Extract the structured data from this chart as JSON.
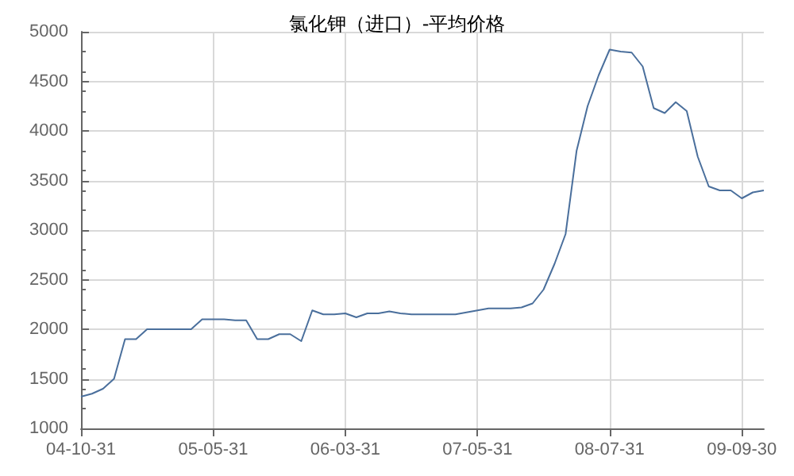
{
  "chart_data": {
    "type": "line",
    "title": "氯化钾（进口）-平均价格",
    "categories": [
      "04-10-31",
      null,
      null,
      null,
      null,
      null,
      null,
      null,
      null,
      null,
      null,
      null,
      "05-05-31",
      null,
      null,
      null,
      null,
      null,
      null,
      null,
      null,
      null,
      null,
      null,
      "06-03-31",
      null,
      null,
      null,
      null,
      null,
      null,
      null,
      null,
      null,
      null,
      null,
      "07-05-31",
      null,
      null,
      null,
      null,
      null,
      null,
      null,
      null,
      null,
      null,
      null,
      "08-07-31",
      null,
      null,
      null,
      null,
      null,
      null,
      null,
      null,
      null,
      null,
      null,
      "09-09-30",
      null,
      null
    ],
    "series": [
      {
        "color": "#4a6f9c",
        "values": [
          1320,
          1350,
          1400,
          1500,
          1900,
          1900,
          2000,
          2000,
          2000,
          2000,
          2000,
          2100,
          2100,
          2100,
          2090,
          2090,
          1900,
          1900,
          1950,
          1950,
          1880,
          2190,
          2150,
          2150,
          2160,
          2120,
          2160,
          2160,
          2180,
          2160,
          2150,
          2150,
          2150,
          2150,
          2150,
          2170,
          2190,
          2210,
          2210,
          2210,
          2220,
          2260,
          2400,
          2660,
          2960,
          3800,
          4250,
          4560,
          4820,
          4800,
          4790,
          4650,
          4230,
          4180,
          4290,
          4200,
          3740,
          3440,
          3400,
          3400,
          3320,
          3380,
          3400
        ]
      }
    ],
    "ylim": [
      1000,
      5000
    ],
    "yticks": [
      1000,
      1500,
      2000,
      2500,
      3000,
      3500,
      4000,
      4500,
      5000
    ],
    "grid": true,
    "marker": "none",
    "line_style": "solid"
  }
}
